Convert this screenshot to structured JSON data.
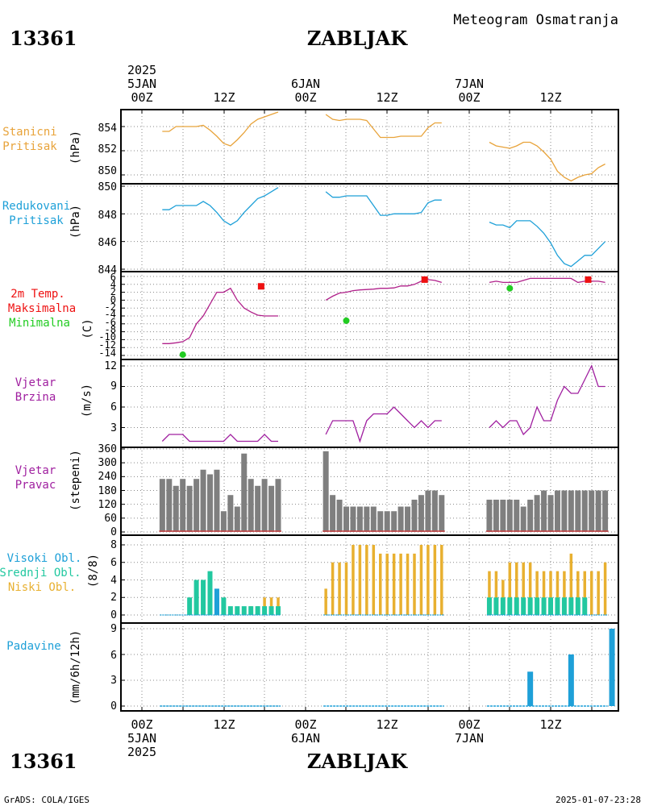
{
  "header": {
    "title_right": "Meteogram Osmatranja",
    "station_id": "13361",
    "station_name": "ZABLJAK",
    "top_year": "2025",
    "time_labels_top": [
      "5JAN",
      "00Z",
      "12Z",
      "6JAN",
      "00Z",
      "12Z",
      "7JAN",
      "00Z",
      "12Z"
    ],
    "time_labels_bottom": [
      "00Z",
      "12Z",
      "00Z",
      "12Z",
      "00Z",
      "12Z"
    ],
    "date_labels_bottom": [
      "5JAN",
      "6JAN",
      "7JAN"
    ],
    "bottom_year": "2025"
  },
  "footer": {
    "left": "GrADS: COLA/IGES",
    "right": "2025-01-07-23:28"
  },
  "colors": {
    "pressure": "#e8a33a",
    "reduced": "#1ea0d8",
    "temp_line": "#b0208a",
    "tmax": "#ee1111",
    "tmin": "#22cc22",
    "wind_speed": "#a020a0",
    "wind_dir": "#7f7f7f",
    "cloud_high": "#1ea0d8",
    "cloud_mid": "#22c8a0",
    "cloud_low": "#e8b030",
    "precip": "#1ea0d8",
    "label_red": "#ee1111",
    "label_green": "#22cc22"
  },
  "panels": {
    "p1": {
      "label1": "Stanicni",
      "label2": "Pritisak",
      "unit": "(hPa)",
      "ticks": [
        "854",
        "852",
        "850"
      ]
    },
    "p2": {
      "label1": "Redukovani",
      "label2": "Pritisak",
      "unit": "(hPa)",
      "ticks": [
        "850",
        "848",
        "846",
        "844"
      ]
    },
    "p3": {
      "label1": "2m Temp.",
      "label2": "Maksimalna",
      "label3": "Minimalna",
      "unit": "(C)",
      "ticks": [
        "6",
        "4",
        "2",
        "0",
        "-2",
        "-4",
        "-6",
        "-8",
        "-10",
        "-12",
        "-14"
      ]
    },
    "p4": {
      "label1": "Vjetar",
      "label2": "Brzina",
      "unit": "(m/s)",
      "ticks": [
        "12",
        "9",
        "6",
        "3"
      ]
    },
    "p5": {
      "label1": "Vjetar",
      "label2": "Pravac",
      "unit": "(stepeni)",
      "ticks": [
        "360",
        "300",
        "240",
        "180",
        "120",
        "60",
        "0"
      ]
    },
    "p6": {
      "label1": "Visoki Obl.",
      "label2": "Srednji Obl.",
      "label3": "Niski Obl.",
      "unit": "(8/8)",
      "ticks": [
        "8",
        "6",
        "4",
        "2",
        "0"
      ]
    },
    "p7": {
      "label1": "Padavine",
      "unit": "(mm/6h/12h)",
      "ticks": [
        "9",
        "6",
        "3",
        "0"
      ]
    }
  },
  "chart_data": [
    {
      "type": "line",
      "name": "station_pressure",
      "ylabel": "(hPa)",
      "ylim": [
        849.6,
        855.2
      ],
      "segments": [
        {
          "x": [
            3,
            4,
            5,
            6,
            7,
            8,
            9,
            10,
            11,
            12,
            13,
            14,
            15,
            16,
            17,
            18,
            19,
            20
          ],
          "y": [
            853.6,
            853.6,
            854.0,
            854.0,
            854.0,
            854.0,
            854.1,
            853.7,
            853.2,
            852.6,
            852.4,
            852.9,
            853.5,
            854.2,
            854.6,
            854.8,
            855.0,
            855.2
          ]
        },
        {
          "x": [
            27,
            28,
            29,
            30,
            31,
            32,
            33,
            34,
            35,
            36,
            37,
            38,
            39,
            40,
            41,
            42,
            43,
            44
          ],
          "y": [
            855.0,
            854.6,
            854.5,
            854.6,
            854.6,
            854.6,
            854.5,
            853.8,
            853.1,
            853.1,
            853.1,
            853.2,
            853.2,
            853.2,
            853.2,
            853.9,
            854.3,
            854.3
          ]
        },
        {
          "x": [
            51,
            52,
            53,
            54,
            55,
            56,
            57,
            58,
            59,
            60,
            61,
            62,
            63,
            64,
            65,
            66,
            67,
            68
          ],
          "y": [
            852.7,
            852.4,
            852.3,
            852.2,
            852.4,
            852.7,
            852.7,
            852.4,
            851.9,
            851.3,
            850.3,
            849.8,
            849.5,
            849.8,
            850.0,
            850.1,
            850.6,
            850.9
          ]
        }
      ]
    },
    {
      "type": "line",
      "name": "reduced_pressure",
      "ylabel": "(hPa)",
      "ylim": [
        844,
        850
      ],
      "segments": [
        {
          "x": [
            3,
            4,
            5,
            6,
            7,
            8,
            9,
            10,
            11,
            12,
            13,
            14,
            15,
            16,
            17,
            18,
            19,
            20
          ],
          "y": [
            848.3,
            848.3,
            848.6,
            848.6,
            848.6,
            848.6,
            848.9,
            848.6,
            848.1,
            847.5,
            847.2,
            847.5,
            848.1,
            848.6,
            849.1,
            849.3,
            849.6,
            849.9
          ]
        },
        {
          "x": [
            27,
            28,
            29,
            30,
            31,
            32,
            33,
            34,
            35,
            36,
            37,
            38,
            39,
            40,
            41,
            42,
            43,
            44
          ],
          "y": [
            849.6,
            849.2,
            849.2,
            849.3,
            849.3,
            849.3,
            849.3,
            848.6,
            847.9,
            847.9,
            848.0,
            848.0,
            848.0,
            848.0,
            848.1,
            848.8,
            849.0,
            849.0
          ]
        },
        {
          "x": [
            51,
            52,
            53,
            54,
            55,
            56,
            57,
            58,
            59,
            60,
            61,
            62,
            63,
            64,
            65,
            66,
            67,
            68
          ],
          "y": [
            847.4,
            847.2,
            847.2,
            847.0,
            847.5,
            847.5,
            847.5,
            847.1,
            846.6,
            845.9,
            845.0,
            844.4,
            844.2,
            844.6,
            845.0,
            845.0,
            845.5,
            846.0
          ]
        }
      ]
    },
    {
      "type": "line",
      "name": "temperature_2m",
      "ylabel": "(C)",
      "ylim": [
        -14,
        6
      ],
      "segments": [
        {
          "x": [
            3,
            4,
            5,
            6,
            7,
            8,
            9,
            10,
            11,
            12,
            13,
            14,
            15,
            16,
            17,
            18,
            19,
            20
          ],
          "y": [
            -11,
            -11,
            -10.8,
            -10.5,
            -9.5,
            -6,
            -4,
            -1,
            2,
            2,
            3,
            0,
            -2,
            -3,
            -3.8,
            -4,
            -4,
            -4
          ]
        },
        {
          "x": [
            27,
            28,
            29,
            30,
            31,
            32,
            33,
            34,
            35,
            36,
            37,
            38,
            39,
            40,
            41,
            42,
            43,
            44
          ],
          "y": [
            0,
            1,
            1.8,
            2,
            2.4,
            2.6,
            2.7,
            2.8,
            3.0,
            3.0,
            3.1,
            3.6,
            3.6,
            4.0,
            4.8,
            5.2,
            5.0,
            4.5
          ]
        },
        {
          "x": [
            51,
            52,
            53,
            54,
            55,
            56,
            57,
            58,
            59,
            60,
            61,
            62,
            63,
            64,
            65,
            66,
            67,
            68
          ],
          "y": [
            4.5,
            4.8,
            4.5,
            4.5,
            4.5,
            5,
            5.5,
            5.5,
            5.5,
            5.5,
            5.5,
            5.5,
            5.5,
            4.5,
            4.8,
            4.8,
            4.8,
            4.5
          ]
        }
      ],
      "tmax": [
        {
          "x": 17.5,
          "y": 3.5
        },
        {
          "x": 41.5,
          "y": 5.2
        },
        {
          "x": 65.5,
          "y": 5.2
        }
      ],
      "tmin": [
        {
          "x": 6,
          "y": -13.8
        },
        {
          "x": 30,
          "y": -5.2
        },
        {
          "x": 54,
          "y": 3.0
        }
      ]
    },
    {
      "type": "line",
      "name": "wind_speed",
      "ylabel": "(m/s)",
      "ylim": [
        0,
        12
      ],
      "segments": [
        {
          "x": [
            3,
            4,
            5,
            6,
            7,
            8,
            9,
            10,
            11,
            12,
            13,
            14,
            15,
            16,
            17,
            18,
            19,
            20
          ],
          "y": [
            1,
            2,
            2,
            2,
            1,
            1,
            1,
            1,
            1,
            1,
            2,
            1,
            1,
            1,
            1,
            2,
            1,
            1
          ]
        },
        {
          "x": [
            27,
            28,
            29,
            30,
            31,
            32,
            33,
            34,
            35,
            36,
            37,
            38,
            39,
            40,
            41,
            42,
            43,
            44
          ],
          "y": [
            2,
            4,
            4,
            4,
            4,
            1,
            4,
            5,
            5,
            5,
            6,
            5,
            4,
            3,
            4,
            3,
            4,
            4
          ]
        },
        {
          "x": [
            51,
            52,
            53,
            54,
            55,
            56,
            57,
            58,
            59,
            60,
            61,
            62,
            63,
            64,
            65,
            66,
            67,
            68
          ],
          "y": [
            3,
            4,
            3,
            4,
            4,
            2,
            3,
            6,
            4,
            4,
            7,
            9,
            8,
            8,
            10,
            12,
            9,
            9
          ]
        }
      ]
    },
    {
      "type": "bar",
      "name": "wind_direction",
      "ylabel": "(stepeni)",
      "ylim": [
        0,
        360
      ],
      "x": [
        3,
        4,
        5,
        6,
        7,
        8,
        9,
        10,
        11,
        12,
        13,
        14,
        15,
        16,
        17,
        18,
        19,
        20,
        27,
        28,
        29,
        30,
        31,
        32,
        33,
        34,
        35,
        36,
        37,
        38,
        39,
        40,
        41,
        42,
        43,
        44,
        51,
        52,
        53,
        54,
        55,
        56,
        57,
        58,
        59,
        60,
        61,
        62,
        63,
        64,
        65,
        66,
        67,
        68
      ],
      "values": [
        230,
        230,
        200,
        230,
        200,
        230,
        270,
        250,
        270,
        90,
        160,
        110,
        340,
        230,
        200,
        230,
        200,
        230,
        350,
        160,
        140,
        110,
        110,
        110,
        110,
        110,
        90,
        90,
        90,
        110,
        110,
        140,
        160,
        180,
        180,
        160,
        140,
        140,
        140,
        140,
        140,
        110,
        140,
        160,
        180,
        160,
        180,
        180,
        180,
        180,
        180,
        180,
        180,
        180
      ]
    },
    {
      "type": "bar",
      "name": "cloud_cover",
      "ylabel": "(8/8)",
      "ylim": [
        0,
        8
      ],
      "x": [
        3,
        4,
        5,
        6,
        7,
        8,
        9,
        10,
        11,
        12,
        13,
        14,
        15,
        16,
        17,
        18,
        19,
        20,
        27,
        28,
        29,
        30,
        31,
        32,
        33,
        34,
        35,
        36,
        37,
        38,
        39,
        40,
        41,
        42,
        43,
        44,
        51,
        52,
        53,
        54,
        55,
        56,
        57,
        58,
        59,
        60,
        61,
        62,
        63,
        64,
        65,
        66,
        67,
        68
      ],
      "series": [
        {
          "name": "Visoki Obl.",
          "values": [
            0,
            0,
            0,
            0,
            0,
            0,
            0,
            0,
            3,
            0,
            0,
            0,
            0,
            0,
            0,
            0,
            0,
            0,
            0,
            0,
            0,
            0,
            0,
            0,
            0,
            0,
            0,
            0,
            0,
            0,
            0,
            0,
            0,
            0,
            0,
            0,
            0,
            0,
            0,
            0,
            0,
            0,
            0,
            0,
            0,
            0,
            0,
            0,
            0,
            0,
            0,
            0,
            0,
            0
          ]
        },
        {
          "name": "Srednji Obl.",
          "values": [
            0,
            0,
            0,
            0,
            2,
            4,
            4,
            5,
            2,
            2,
            1,
            1,
            1,
            1,
            1,
            1,
            1,
            1,
            0,
            0,
            0,
            0,
            0,
            0,
            0,
            0,
            0,
            0,
            0,
            0,
            0,
            0,
            0,
            0,
            0,
            0,
            2,
            2,
            2,
            2,
            2,
            2,
            2,
            2,
            2,
            2,
            2,
            2,
            2,
            2,
            2,
            0,
            0,
            0
          ]
        },
        {
          "name": "Niski Obl.",
          "values": [
            0,
            0,
            0,
            0,
            0,
            0,
            0,
            0,
            0,
            0,
            0,
            0,
            0,
            1,
            1,
            2,
            2,
            2,
            3,
            6,
            6,
            6,
            8,
            8,
            8,
            8,
            7,
            7,
            7,
            7,
            7,
            7,
            8,
            8,
            8,
            8,
            5,
            5,
            4,
            6,
            6,
            6,
            6,
            5,
            5,
            5,
            5,
            5,
            7,
            5,
            5,
            5,
            5,
            6
          ]
        }
      ]
    },
    {
      "type": "bar",
      "name": "precipitation",
      "ylabel": "(mm/6h/12h)",
      "ylim": [
        0,
        9
      ],
      "x": [
        57,
        63,
        69
      ],
      "values": [
        4,
        6,
        9
      ]
    }
  ]
}
